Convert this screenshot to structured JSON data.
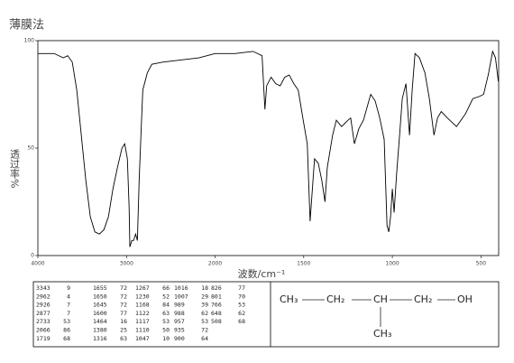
{
  "chart_data": {
    "type": "line",
    "title": "薄膜法",
    "x_label": "波数/cm⁻¹",
    "y_label": "透过率%",
    "xlim": [
      4000,
      400
    ],
    "x_scale_change": {
      "at": 2000,
      "factor": 2
    },
    "xticks": [
      4000,
      3000,
      2000,
      1500,
      1000,
      500
    ],
    "ylim": [
      0,
      100
    ],
    "yticks": [
      0,
      50,
      100
    ],
    "x": [
      4000,
      3918,
      3816,
      3714,
      3663,
      3612,
      3561,
      3510,
      3459,
      3408,
      3357,
      3306,
      3255,
      3204,
      3153,
      3102,
      3051,
      3020,
      2990,
      2970,
      2962,
      2940,
      2926,
      2920,
      2897,
      2877,
      2857,
      2837,
      2816,
      2765,
      2714,
      2592,
      2388,
      2184,
      2000,
      1888,
      1786,
      1735,
      1719,
      1709,
      1684,
      1658,
      1633,
      1607,
      1582,
      1556,
      1531,
      1505,
      1480,
      1464,
      1439,
      1418,
      1398,
      1380,
      1367,
      1337,
      1316,
      1286,
      1250,
      1235,
      1214,
      1189,
      1163,
      1122,
      1097,
      1071,
      1046,
      1030,
      1020,
      1010,
      1000,
      990,
      975,
      959,
      944,
      923,
      903,
      888,
      872,
      847,
      816,
      791,
      765,
      745,
      724,
      689,
      638,
      587,
      546,
      510,
      485,
      459,
      434,
      418,
      402
    ],
    "series": [
      {
        "color": "#000000",
        "values": [
          94,
          94,
          94,
          92,
          93,
          90,
          77,
          56,
          35,
          18,
          11,
          10,
          12,
          18,
          31,
          41,
          50,
          52,
          45,
          22,
          4,
          7,
          7,
          7,
          10,
          7,
          35,
          56,
          77,
          85,
          89,
          90,
          91,
          92,
          94,
          94,
          95,
          93,
          68,
          79,
          83,
          80,
          79,
          83,
          84,
          80,
          77,
          64,
          52,
          16,
          45,
          43,
          35,
          25,
          41,
          56,
          63,
          60,
          63,
          64,
          52,
          59,
          63,
          75,
          72,
          64,
          54,
          14,
          11,
          18,
          31,
          20,
          39,
          56,
          73,
          80,
          56,
          77,
          94,
          92,
          85,
          73,
          56,
          64,
          67,
          64,
          60,
          66,
          73,
          74,
          75,
          84,
          95,
          92,
          81
        ]
      }
    ]
  },
  "peak_table": {
    "columns": [
      [
        [
          "3343",
          "9"
        ],
        [
          "2962",
          "4"
        ],
        [
          "2926",
          "7"
        ],
        [
          "2877",
          "7"
        ],
        [
          "2733",
          "53"
        ],
        [
          "2066",
          "86"
        ],
        [
          "1719",
          "68"
        ]
      ],
      [
        [
          "1655",
          "72"
        ],
        [
          "1650",
          "72"
        ],
        [
          "1645",
          "72"
        ],
        [
          "1600",
          "77"
        ],
        [
          "1464",
          "16"
        ],
        [
          "1380",
          "25"
        ],
        [
          "1316",
          "63"
        ]
      ],
      [
        [
          "1267",
          "66"
        ],
        [
          "1230",
          "52"
        ],
        [
          "1168",
          "84"
        ],
        [
          "1122",
          "63"
        ],
        [
          "1117",
          "53"
        ],
        [
          "1110",
          "50"
        ],
        [
          "1047",
          "10"
        ]
      ],
      [
        [
          "1016",
          "18"
        ],
        [
          "1007",
          "29"
        ],
        [
          "989",
          "39"
        ],
        [
          "988",
          "62"
        ],
        [
          "957",
          "53"
        ],
        [
          "935",
          "72"
        ],
        [
          "900",
          "64"
        ]
      ],
      [
        [
          "826",
          "77"
        ],
        [
          "801",
          "70"
        ],
        [
          "766",
          "53"
        ],
        [
          "648",
          "62"
        ],
        [
          "508",
          "68"
        ]
      ]
    ]
  },
  "structure": {
    "groups": [
      "CH₃",
      "CH₂",
      "CH",
      "CH₂",
      "OH"
    ],
    "branch": "CH₃"
  }
}
